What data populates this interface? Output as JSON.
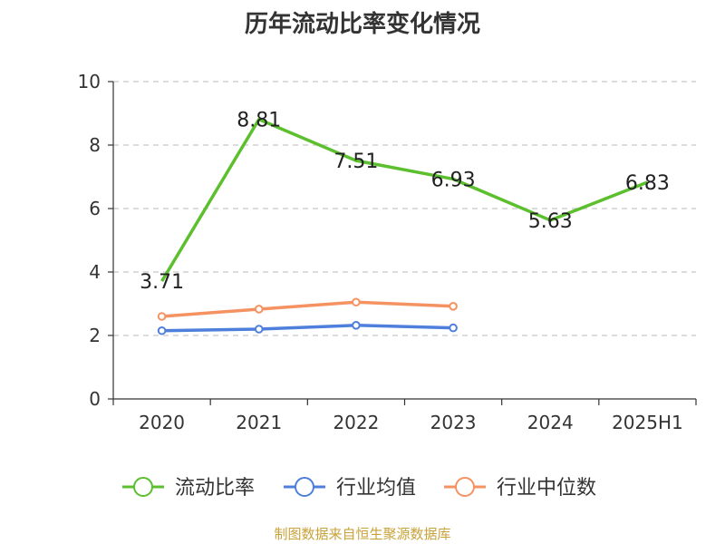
{
  "title": "历年流动比率变化情况",
  "source": "制图数据来自恒生聚源数据库",
  "colors": {
    "current_ratio": "#5bbf2e",
    "industry_mean": "#4f7fdc",
    "industry_median": "#f59262",
    "source_text": "#c9a23a",
    "grid": "#c8c8c8",
    "axis": "#333333"
  },
  "chart_data": {
    "type": "line",
    "title": "历年流动比率变化情况",
    "categories": [
      "2020",
      "2021",
      "2022",
      "2023",
      "2024",
      "2025H1"
    ],
    "ylim": [
      0,
      10
    ],
    "yticks": [
      "0",
      "2",
      "4",
      "6",
      "8",
      "10"
    ],
    "grid": "horizontal-dashed",
    "legend_position": "bottom",
    "series": [
      {
        "name": "流动比率",
        "values": [
          3.71,
          8.81,
          7.51,
          6.93,
          5.63,
          6.83
        ],
        "labels": [
          "3.71",
          "8.81",
          "7.51",
          "6.93",
          "5.63",
          "6.83"
        ]
      },
      {
        "name": "行业均值",
        "values": [
          2.15,
          2.2,
          2.32,
          2.24,
          null,
          null
        ]
      },
      {
        "name": "行业中位数",
        "values": [
          2.6,
          2.83,
          3.05,
          2.92,
          null,
          null
        ]
      }
    ]
  }
}
